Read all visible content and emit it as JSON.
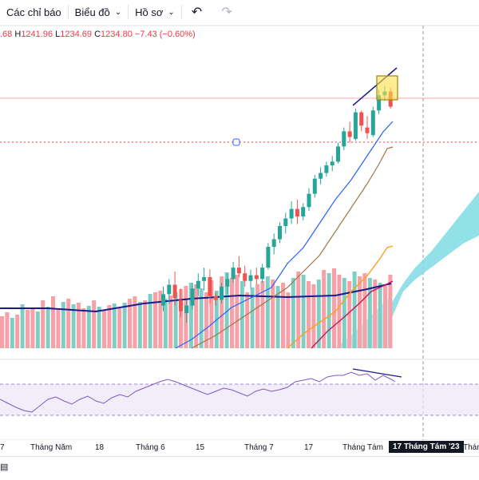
{
  "toolbar": {
    "indicators_label": "Các chỉ báo",
    "charts_label": "Biểu đồ",
    "profile_label": "Hồ sơ",
    "undo_icon": "undo-icon",
    "redo_icon": "redo-icon"
  },
  "ohlc": {
    "o_value": ".68",
    "h_label": "H",
    "h_value": "1241.96",
    "l_label": "L",
    "l_value": "1234.69",
    "c_label": "C",
    "c_value": "1234.80",
    "change": "−7.43 (−0.60%)"
  },
  "xaxis": {
    "labels": [
      "7",
      "Tháng Năm",
      "18",
      "Tháng 6",
      "15",
      "Tháng 7",
      "17",
      "Tháng Tám",
      "Tháng"
    ],
    "highlight": "17 Tháng Tám '23"
  },
  "colors": {
    "up": "#26a69a",
    "down": "#ef5350",
    "vol_up": "#7fcdc5",
    "vol_down": "#f7a1a6",
    "cloud": "#7fdce4",
    "rsi": "#7e57c2",
    "ma_navy": "#1a1a8c",
    "ma_blue": "#2962ff",
    "ma_brown": "#a0744a",
    "ma_orange": "#f7a21b",
    "ma_crimson": "#c2185b"
  },
  "chart_data": {
    "type": "candlestick",
    "candles": [
      {
        "x": "Jun 15",
        "open": 1130,
        "high": 1140,
        "low": 1127,
        "close": 1136
      },
      {
        "x": "Jun 16",
        "open": 1136,
        "high": 1144,
        "low": 1131,
        "close": 1141
      },
      {
        "x": "Jun 19",
        "open": 1141,
        "high": 1148,
        "low": 1130,
        "close": 1134
      },
      {
        "x": "Jun 20",
        "open": 1133,
        "high": 1139,
        "low": 1124,
        "close": 1127
      },
      {
        "x": "Jun 21",
        "open": 1126,
        "high": 1133,
        "low": 1121,
        "close": 1130
      },
      {
        "x": "Jun 22",
        "open": 1130,
        "high": 1142,
        "low": 1128,
        "close": 1139
      },
      {
        "x": "Jun 23",
        "open": 1139,
        "high": 1147,
        "low": 1135,
        "close": 1143
      },
      {
        "x": "Jun 26",
        "open": 1143,
        "high": 1150,
        "low": 1138,
        "close": 1145
      },
      {
        "x": "Jun 27",
        "open": 1145,
        "high": 1149,
        "low": 1131,
        "close": 1135
      },
      {
        "x": "Jun 28",
        "open": 1135,
        "high": 1137,
        "low": 1130,
        "close": 1133
      },
      {
        "x": "Jun 29",
        "open": 1133,
        "high": 1142,
        "low": 1131,
        "close": 1140
      },
      {
        "x": "Jun 30",
        "open": 1140,
        "high": 1147,
        "low": 1136,
        "close": 1144
      },
      {
        "x": "Jul 03",
        "open": 1144,
        "high": 1153,
        "low": 1142,
        "close": 1150
      },
      {
        "x": "Jul 04",
        "open": 1150,
        "high": 1156,
        "low": 1145,
        "close": 1147
      },
      {
        "x": "Jul 05",
        "open": 1147,
        "high": 1151,
        "low": 1140,
        "close": 1143
      },
      {
        "x": "Jul 06",
        "open": 1143,
        "high": 1149,
        "low": 1139,
        "close": 1146
      },
      {
        "x": "Jul 07",
        "open": 1146,
        "high": 1150,
        "low": 1141,
        "close": 1144
      },
      {
        "x": "Jul 10",
        "open": 1144,
        "high": 1152,
        "low": 1142,
        "close": 1150
      },
      {
        "x": "Jul 11",
        "open": 1150,
        "high": 1163,
        "low": 1149,
        "close": 1161
      },
      {
        "x": "Jul 12",
        "open": 1161,
        "high": 1168,
        "low": 1157,
        "close": 1165
      },
      {
        "x": "Jul 13",
        "open": 1165,
        "high": 1174,
        "low": 1163,
        "close": 1172
      },
      {
        "x": "Jul 14",
        "open": 1172,
        "high": 1179,
        "low": 1168,
        "close": 1176
      },
      {
        "x": "Jul 17",
        "open": 1176,
        "high": 1185,
        "low": 1173,
        "close": 1181
      },
      {
        "x": "Jul 18",
        "open": 1181,
        "high": 1186,
        "low": 1173,
        "close": 1177
      },
      {
        "x": "Jul 19",
        "open": 1177,
        "high": 1184,
        "low": 1175,
        "close": 1182
      },
      {
        "x": "Jul 20",
        "open": 1182,
        "high": 1192,
        "low": 1180,
        "close": 1189
      },
      {
        "x": "Jul 21",
        "open": 1189,
        "high": 1199,
        "low": 1187,
        "close": 1197
      },
      {
        "x": "Jul 24",
        "open": 1197,
        "high": 1203,
        "low": 1194,
        "close": 1200
      },
      {
        "x": "Jul 25",
        "open": 1200,
        "high": 1206,
        "low": 1198,
        "close": 1204
      },
      {
        "x": "Jul 26",
        "open": 1204,
        "high": 1209,
        "low": 1201,
        "close": 1206
      },
      {
        "x": "Jul 27",
        "open": 1206,
        "high": 1216,
        "low": 1205,
        "close": 1214
      },
      {
        "x": "Jul 28",
        "open": 1214,
        "high": 1224,
        "low": 1212,
        "close": 1222
      },
      {
        "x": "Jul 31",
        "open": 1222,
        "high": 1227,
        "low": 1216,
        "close": 1219
      },
      {
        "x": "Aug 01",
        "open": 1218,
        "high": 1234,
        "low": 1217,
        "close": 1232
      },
      {
        "x": "Aug 02",
        "open": 1232,
        "high": 1233,
        "low": 1222,
        "close": 1225
      },
      {
        "x": "Aug 03",
        "open": 1224,
        "high": 1230,
        "low": 1218,
        "close": 1221
      },
      {
        "x": "Aug 04",
        "open": 1220,
        "high": 1235,
        "low": 1219,
        "close": 1233
      },
      {
        "x": "Aug 07",
        "open": 1233,
        "high": 1244,
        "low": 1231,
        "close": 1241
      },
      {
        "x": "Aug 08",
        "open": 1241,
        "high": 1246,
        "low": 1238,
        "close": 1243
      },
      {
        "x": "Aug 09",
        "open": 1243,
        "high": 1245,
        "low": 1234,
        "close": 1235
      }
    ],
    "rsi": "overbought divergence, values ~45-75",
    "annotations": [
      "trendline upper",
      "highlight box last candles",
      "divergence line RSI"
    ]
  }
}
